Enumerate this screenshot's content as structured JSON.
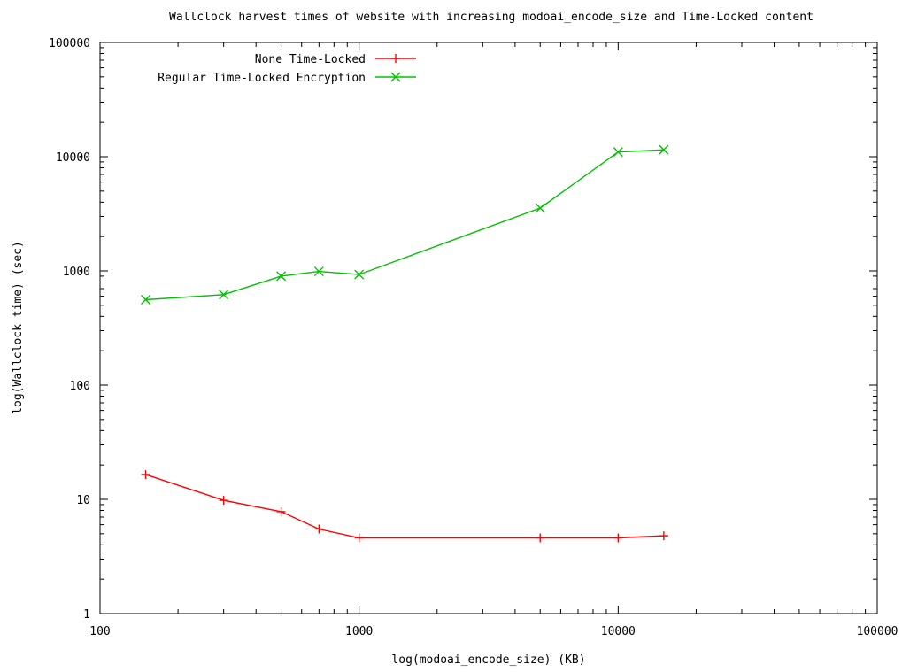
{
  "chart_data": {
    "type": "line",
    "title": "Wallclock harvest times of website with increasing modoai_encode_size and Time-Locked content",
    "xlabel": "log(modoai_encode_size) (KB)",
    "ylabel": "log(Wallclock time) (sec)",
    "x_scale": "log",
    "y_scale": "log",
    "xlim": [
      100,
      100000
    ],
    "ylim": [
      1,
      100000
    ],
    "x_ticks": [
      100,
      1000,
      10000,
      100000
    ],
    "x_tick_labels": [
      "100",
      "1000",
      "10000",
      "100000"
    ],
    "y_ticks": [
      1,
      10,
      100,
      1000,
      10000,
      100000
    ],
    "y_tick_labels": [
      "1",
      "10",
      "100",
      "1000",
      "10000",
      "100000"
    ],
    "grid": false,
    "legend_position": "top-left",
    "series": [
      {
        "name": "None Time-Locked",
        "color": "#ff0000",
        "marker": "plus",
        "x": [
          150,
          300,
          500,
          700,
          1000,
          5000,
          10000,
          15000
        ],
        "y": [
          16.5,
          9.8,
          7.8,
          5.5,
          4.6,
          4.6,
          4.6,
          4.8
        ]
      },
      {
        "name": "Regular Time-Locked Encryption",
        "color": "#00c000",
        "marker": "cross",
        "x": [
          150,
          300,
          500,
          700,
          1000,
          5000,
          10000,
          15000
        ],
        "y": [
          560,
          620,
          900,
          990,
          930,
          3550,
          11000,
          11500
        ]
      }
    ]
  }
}
